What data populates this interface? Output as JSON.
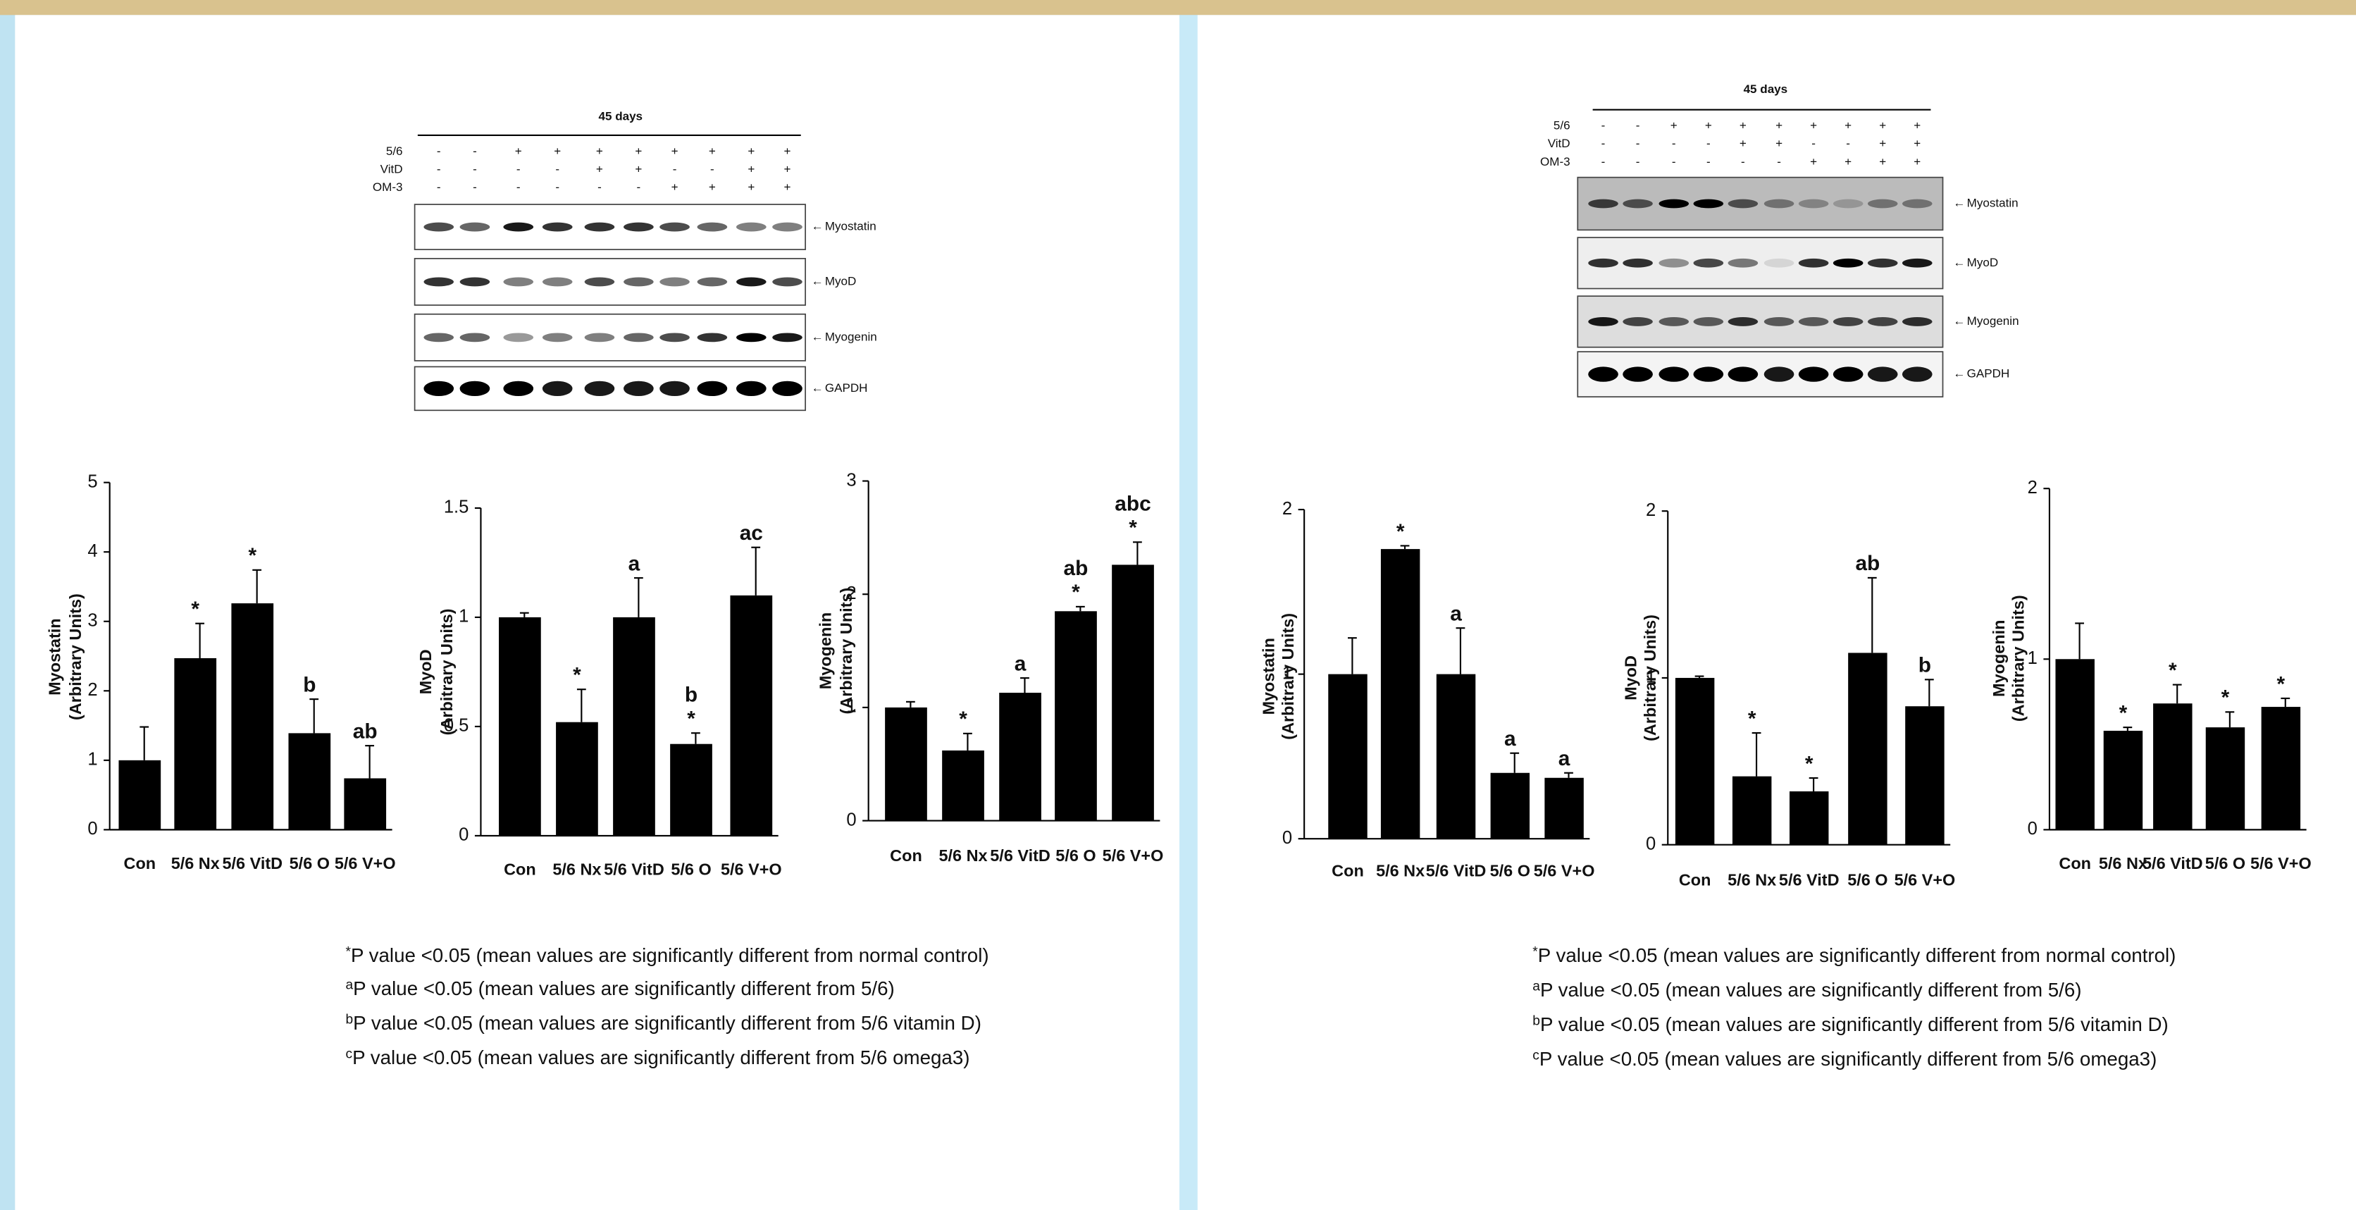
{
  "blots": [
    {
      "title": "45 days",
      "rows": [
        {
          "label": "5/6",
          "signs": [
            "-",
            "-",
            "+",
            "+",
            "+",
            "+",
            "+",
            "+",
            "+",
            "+"
          ]
        },
        {
          "label": "VitD",
          "signs": [
            "-",
            "-",
            "-",
            "-",
            "+",
            "+",
            "-",
            "-",
            "+",
            "+"
          ]
        },
        {
          "label": "OM-3",
          "signs": [
            "-",
            "-",
            "-",
            "-",
            "-",
            "-",
            "+",
            "+",
            "+",
            "+"
          ]
        }
      ],
      "bands": [
        "Myostatin",
        "MyoD",
        "Myogenin",
        "GAPDH"
      ]
    },
    {
      "title": "45 days",
      "rows": [
        {
          "label": "5/6",
          "signs": [
            "-",
            "-",
            "+",
            "+",
            "+",
            "+",
            "+",
            "+",
            "+",
            "+"
          ]
        },
        {
          "label": "VitD",
          "signs": [
            "-",
            "-",
            "-",
            "-",
            "+",
            "+",
            "-",
            "-",
            "+",
            "+"
          ]
        },
        {
          "label": "OM-3",
          "signs": [
            "-",
            "-",
            "-",
            "-",
            "-",
            "-",
            "+",
            "+",
            "+",
            "+"
          ]
        }
      ],
      "bands": [
        "Myostatin",
        "MyoD",
        "Myogenin",
        "GAPDH"
      ]
    }
  ],
  "footnotes": [
    [
      {
        "mark": "*",
        "text": "P value <0.05 (mean values are significantly different from normal control)"
      },
      {
        "mark": "a",
        "text": "P value <0.05 (mean values are significantly different from 5/6)"
      },
      {
        "mark": "b",
        "text": "P value <0.05 (mean values are significantly different from 5/6 vitamin D)"
      },
      {
        "mark": "c",
        "text": "P value <0.05 (mean values are significantly different from 5/6 omega3)"
      }
    ],
    [
      {
        "mark": "*",
        "text": "P value <0.05 (mean values are significantly different from normal control)"
      },
      {
        "mark": "a",
        "text": "P value <0.05 (mean values are significantly different from 5/6)"
      },
      {
        "mark": "b",
        "text": "P value <0.05 (mean values are significantly different from 5/6 vitamin D)"
      },
      {
        "mark": "c",
        "text": "P value <0.05 (mean values are significantly different from 5/6 omega3)"
      }
    ]
  ],
  "chart_data": [
    {
      "type": "bar",
      "ylabel": [
        "Myostatin",
        "(Arbitrary Units)"
      ],
      "categories": [
        "Con",
        "5/6 Nx",
        "5/6 VitD",
        "5/6 O",
        "5/6 V+O"
      ],
      "values": [
        1.0,
        2.47,
        3.26,
        1.39,
        0.74
      ],
      "errors": [
        0.48,
        0.5,
        0.48,
        0.49,
        0.47
      ],
      "annotations": [
        null,
        [
          "*"
        ],
        [
          "*"
        ],
        [
          "b"
        ],
        [
          "ab"
        ]
      ],
      "color": "#000000",
      "ylim": [
        0,
        5
      ],
      "yticks": [
        0,
        1,
        2,
        3,
        4,
        5
      ]
    },
    {
      "type": "bar",
      "ylabel": [
        "MyoD",
        "(Arbitrary Units)"
      ],
      "categories": [
        "Con",
        "5/6 Nx",
        "5/6 VitD",
        "5/6 O",
        "5/6 V+O"
      ],
      "values": [
        1.0,
        0.52,
        1.0,
        0.42,
        1.1
      ],
      "errors": [
        0.02,
        0.15,
        0.18,
        0.05,
        0.22
      ],
      "annotations": [
        null,
        [
          "*"
        ],
        [
          "a"
        ],
        [
          "b",
          "*"
        ],
        [
          "ac"
        ]
      ],
      "color": "#000000",
      "ylim": [
        0,
        1.5
      ],
      "yticks": [
        0,
        0.5,
        1,
        1.5
      ]
    },
    {
      "type": "bar",
      "ylabel": [
        "Myogenin",
        "(Arbitrary Units)"
      ],
      "categories": [
        "Con",
        "5/6 Nx",
        "5/6 VitD",
        "5/6 O",
        "5/6 V+O"
      ],
      "values": [
        1.0,
        0.62,
        1.13,
        1.85,
        2.26
      ],
      "errors": [
        0.05,
        0.15,
        0.13,
        0.04,
        0.2
      ],
      "annotations": [
        null,
        [
          "*"
        ],
        [
          "a"
        ],
        [
          "ab",
          "*"
        ],
        [
          "abc",
          "*"
        ]
      ],
      "color": "#000000",
      "ylim": [
        0,
        3
      ],
      "yticks": [
        0,
        1,
        2,
        3
      ]
    },
    {
      "type": "bar",
      "ylabel": [
        "Myostatin",
        "(Arbitrary Units)"
      ],
      "categories": [
        "Con",
        "5/6 Nx",
        "5/6 VitD",
        "5/6 O",
        "5/6 V+O"
      ],
      "values": [
        1.0,
        1.76,
        1.0,
        0.4,
        0.37
      ],
      "errors": [
        0.22,
        0.02,
        0.28,
        0.12,
        0.03
      ],
      "annotations": [
        null,
        [
          "*"
        ],
        [
          "a"
        ],
        [
          "a"
        ],
        [
          "a"
        ]
      ],
      "color": "#000000",
      "ylim": [
        0,
        2
      ],
      "yticks": [
        0,
        1,
        2
      ]
    },
    {
      "type": "bar",
      "ylabel": [
        "MyoD",
        "(Arbitrary Units)"
      ],
      "categories": [
        "Con",
        "5/6 Nx",
        "5/6 VitD",
        "5/6 O",
        "5/6 V+O"
      ],
      "values": [
        1.0,
        0.41,
        0.32,
        1.15,
        0.83
      ],
      "errors": [
        0.01,
        0.26,
        0.08,
        0.45,
        0.16
      ],
      "annotations": [
        null,
        [
          "*"
        ],
        [
          "*"
        ],
        [
          "ab"
        ],
        [
          "b"
        ]
      ],
      "color": "#000000",
      "ylim": [
        0,
        2
      ],
      "yticks": [
        0,
        1,
        2
      ]
    },
    {
      "type": "bar",
      "ylabel": [
        "Myogenin",
        "(Arbitrary Units)"
      ],
      "categories": [
        "Con",
        "5/6 Nx",
        "5/6 VitD",
        "5/6 O",
        "5/6 V+O"
      ],
      "values": [
        1.0,
        0.58,
        0.74,
        0.6,
        0.72
      ],
      "errors": [
        0.21,
        0.02,
        0.11,
        0.09,
        0.05
      ],
      "annotations": [
        null,
        [
          "*"
        ],
        [
          "*"
        ],
        [
          "*"
        ],
        [
          "*"
        ]
      ],
      "color": "#000000",
      "ylim": [
        0,
        2
      ],
      "yticks": [
        0,
        1,
        2
      ]
    }
  ]
}
